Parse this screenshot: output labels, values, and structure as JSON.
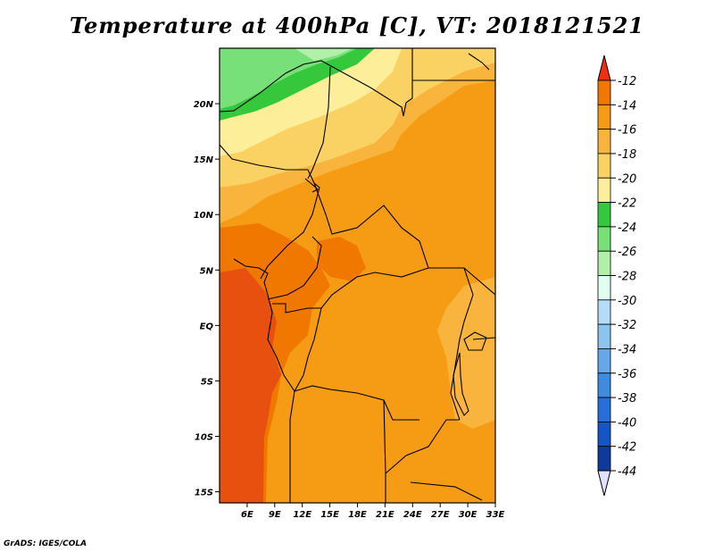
{
  "title": "Temperature at 400hPa [C], VT: 2018121521",
  "credit": "GrADS: IGES/COLA",
  "map": {
    "lon_range": [
      3,
      33
    ],
    "lat_range": [
      -16,
      25
    ],
    "lon_ticks": [
      {
        "value": 6,
        "label": "6E"
      },
      {
        "value": 9,
        "label": "9E"
      },
      {
        "value": 12,
        "label": "12E"
      },
      {
        "value": 15,
        "label": "15E"
      },
      {
        "value": 18,
        "label": "18E"
      },
      {
        "value": 21,
        "label": "21E"
      },
      {
        "value": 24,
        "label": "24E"
      },
      {
        "value": 27,
        "label": "27E"
      },
      {
        "value": 30,
        "label": "30E"
      },
      {
        "value": 33,
        "label": "33E"
      }
    ],
    "lat_ticks": [
      {
        "value": 20,
        "label": "20N"
      },
      {
        "value": 15,
        "label": "15N"
      },
      {
        "value": 10,
        "label": "10N"
      },
      {
        "value": 5,
        "label": "5N"
      },
      {
        "value": 0,
        "label": "EQ"
      },
      {
        "value": -5,
        "label": "5S"
      },
      {
        "value": -10,
        "label": "10S"
      },
      {
        "value": -15,
        "label": "15S"
      }
    ]
  },
  "colorbar": {
    "labels": [
      "-12",
      "-14",
      "-16",
      "-18",
      "-20",
      "-22",
      "-24",
      "-26",
      "-28",
      "-30",
      "-32",
      "-34",
      "-36",
      "-38",
      "-40",
      "-42",
      "-44"
    ],
    "colors": [
      "#e85010",
      "#f07800",
      "#f59c14",
      "#f8b43c",
      "#fad264",
      "#fdee9a",
      "#36c83c",
      "#78e078",
      "#b0f0a8",
      "#e0fff0",
      "#b4dcf8",
      "#8cc4f0",
      "#64a8ea",
      "#3c8ce0",
      "#2470d8",
      "#1656c4",
      "#0f3a9c",
      "#101070"
    ],
    "top_arrow_color": "#ee3010",
    "bottom_arrow_color": "#e0e0ff"
  }
}
